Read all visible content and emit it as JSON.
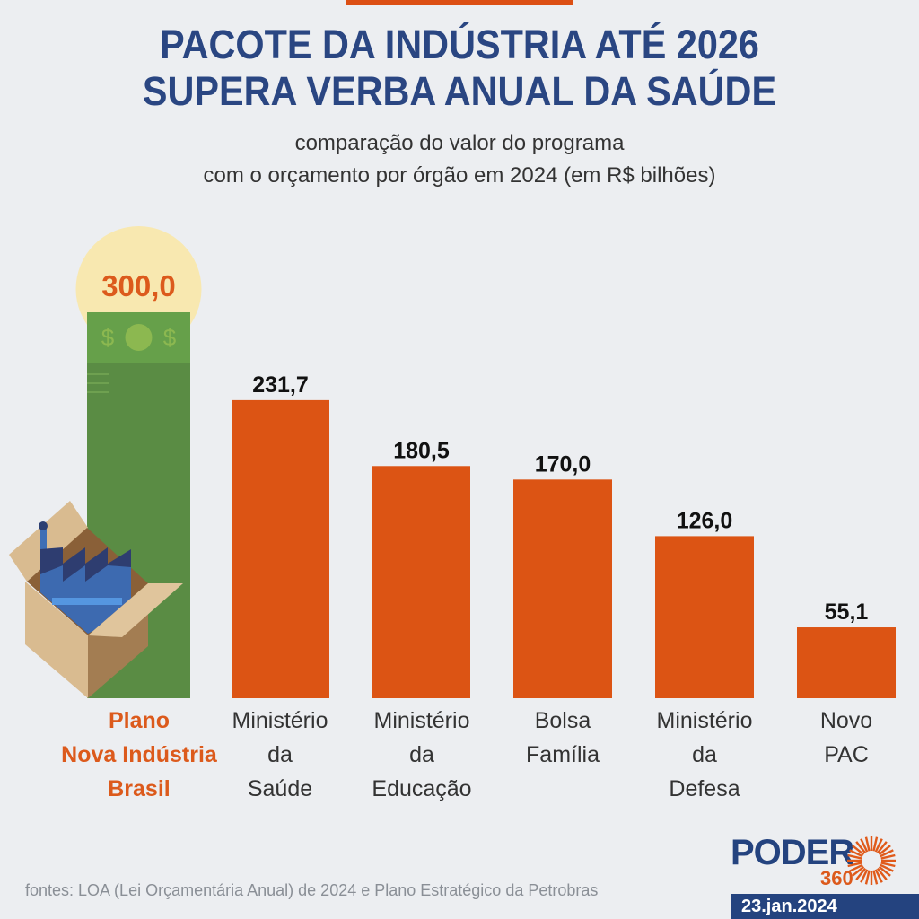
{
  "header": {
    "title_line1": "PACOTE DA INDÚSTRIA ATÉ 2026",
    "title_line2": "SUPERA VERBA ANUAL DA SAÚDE",
    "subtitle_line1": "comparação do valor do programa",
    "subtitle_line2": "com o orçamento por órgão em 2024 (em R$ bilhões)"
  },
  "chart_data": {
    "type": "bar",
    "title": "PACOTE DA INDÚSTRIA ATÉ 2026 SUPERA VERBA ANUAL DA SAÚDE",
    "subtitle": "comparação do valor do programa com o orçamento por órgão em 2024 (em R$ bilhões)",
    "categories": [
      [
        "Plano",
        "Nova Indústria",
        "Brasil"
      ],
      [
        "Ministério",
        "da",
        "Saúde"
      ],
      [
        "Ministério",
        "da",
        "Educação"
      ],
      [
        "Bolsa",
        "Família"
      ],
      [
        "Ministério",
        "da",
        "Defesa"
      ],
      [
        "Novo",
        "PAC"
      ]
    ],
    "values": [
      300.0,
      231.7,
      180.5,
      170.0,
      126.0,
      55.1
    ],
    "value_labels": [
      "300,0",
      "231,7",
      "180,5",
      "170,0",
      "126,0",
      "55,1"
    ],
    "highlight_index": 0,
    "xlabel": "",
    "ylabel": "R$ bilhões",
    "ylim": [
      0,
      300
    ],
    "grid": false,
    "colors": {
      "bar": "#dc5414",
      "highlight_bar": "#5a8c44",
      "highlight_label": "#dc5a1c",
      "glow": "#f8e8b0"
    }
  },
  "footer": {
    "source": "fontes: LOA (Lei Orçamentária Anual) de 2024 e Plano Estratégico da Petrobras",
    "logo_text": "PODER",
    "logo_number": "360",
    "date": "23.jan.2024"
  }
}
